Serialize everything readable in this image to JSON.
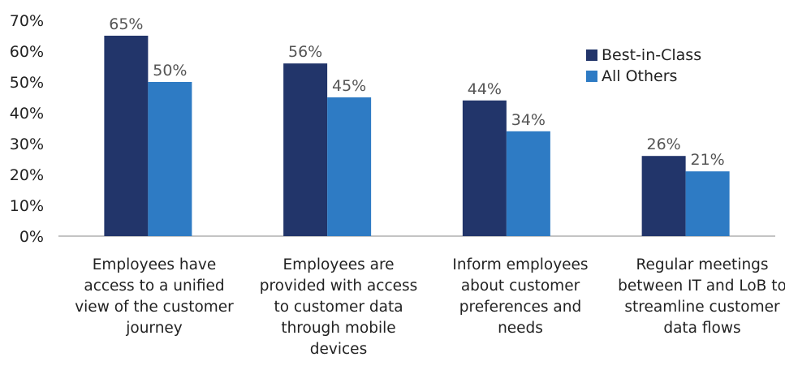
{
  "chart_data": {
    "type": "bar",
    "categories": [
      "Employees have access to a unified view of the customer journey",
      "Employees are provided with access to customer data through mobile devices",
      "Inform employees about customer preferences and needs",
      "Regular meetings between IT and LoB to streamline customer data flows"
    ],
    "series": [
      {
        "name": "Best-in-Class",
        "values": [
          65,
          56,
          44,
          26
        ],
        "color": "#22356a"
      },
      {
        "name": "All Others",
        "values": [
          50,
          45,
          34,
          21
        ],
        "color": "#2e7bc4"
      }
    ],
    "data_labels": [
      [
        "65%",
        "56%",
        "44%",
        "26%"
      ],
      [
        "50%",
        "45%",
        "34%",
        "21%"
      ]
    ],
    "y_ticks": [
      "0%",
      "10%",
      "20%",
      "30%",
      "40%",
      "50%",
      "60%",
      "70%"
    ],
    "ylim": [
      0,
      70
    ],
    "unit": "%",
    "grid": false,
    "legend_position": "top-right",
    "title": "",
    "xlabel": "",
    "ylabel": ""
  }
}
